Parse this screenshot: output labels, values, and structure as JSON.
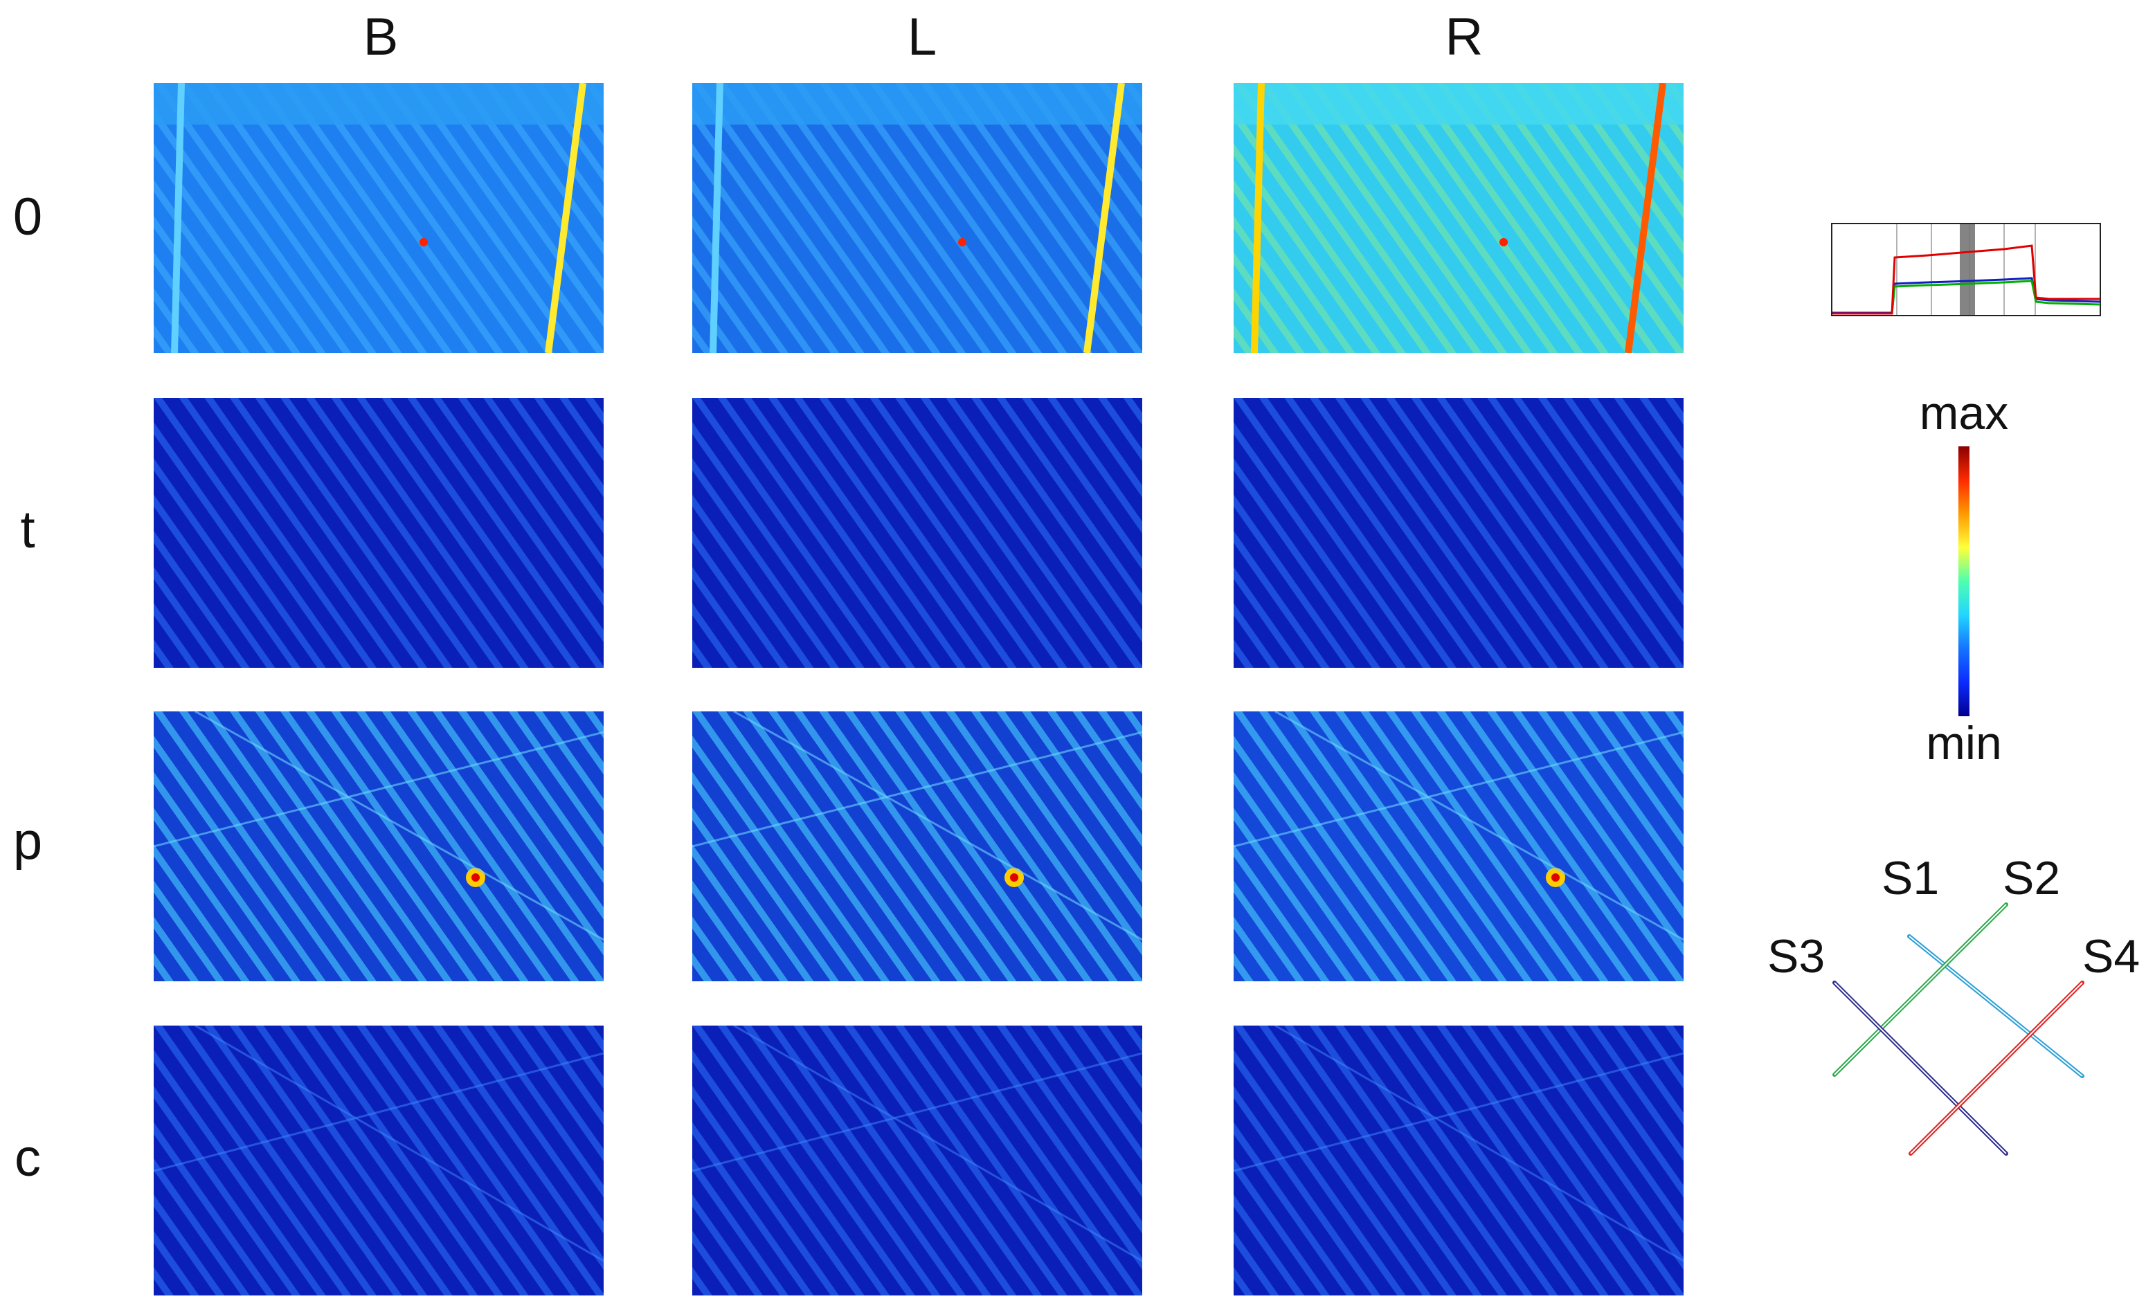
{
  "columns": [
    "B",
    "L",
    "R"
  ],
  "rows": [
    "0",
    "t",
    "p",
    "c"
  ],
  "colorbar": {
    "max_label": "max",
    "min_label": "min",
    "colors": [
      "#8b0000",
      "#ff2a00",
      "#ffff3a",
      "#22d5ff",
      "#0a2bff",
      "#00008f"
    ]
  },
  "sensors": [
    {
      "label": "S1",
      "color": "#2a9fd6"
    },
    {
      "label": "S2",
      "color": "#2aa84a"
    },
    {
      "label": "S3",
      "color": "#2b2b8c"
    },
    {
      "label": "S4",
      "color": "#e02020"
    }
  ],
  "trace_colors": {
    "red": "#e00000",
    "blue": "#1020c0",
    "green": "#00b000",
    "band": "#777777"
  }
}
